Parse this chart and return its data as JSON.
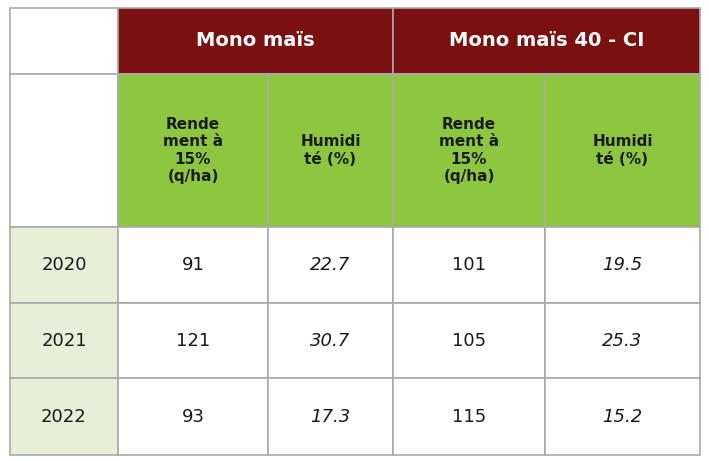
{
  "header1_text": "Mono maïs",
  "header2_text": "Mono maïs 40 - CI",
  "header_bg": "#7B1010",
  "header_fg": "#FFFFFF",
  "subheader_bg": "#8DC63F",
  "subheader_fg": "#1A1A1A",
  "row_year_bg": "#E8EED8",
  "row_year_fg": "#1A1A1A",
  "row_data_bg": "#FFFFFF",
  "row_data_fg": "#1A1A1A",
  "grid_color": "#AAAAAA",
  "col_headers": [
    "Rende\nment à\n15%\n(q/ha)",
    "Humidi\nté (%)",
    "Rende\nment à\n15%\n(q/ha)",
    "Humidi\nté (%)"
  ],
  "rows": [
    {
      "year": "2020",
      "v1": "91",
      "v2": "22.7",
      "v3": "101",
      "v4": "19.5"
    },
    {
      "year": "2021",
      "v1": "121",
      "v2": "30.7",
      "v3": "105",
      "v4": "25.3"
    },
    {
      "year": "2022",
      "v1": "93",
      "v2": "17.3",
      "v3": "115",
      "v4": "15.2"
    }
  ],
  "italic_cols": [
    1,
    3
  ],
  "figsize": [
    7.09,
    4.61
  ],
  "dpi": 100
}
